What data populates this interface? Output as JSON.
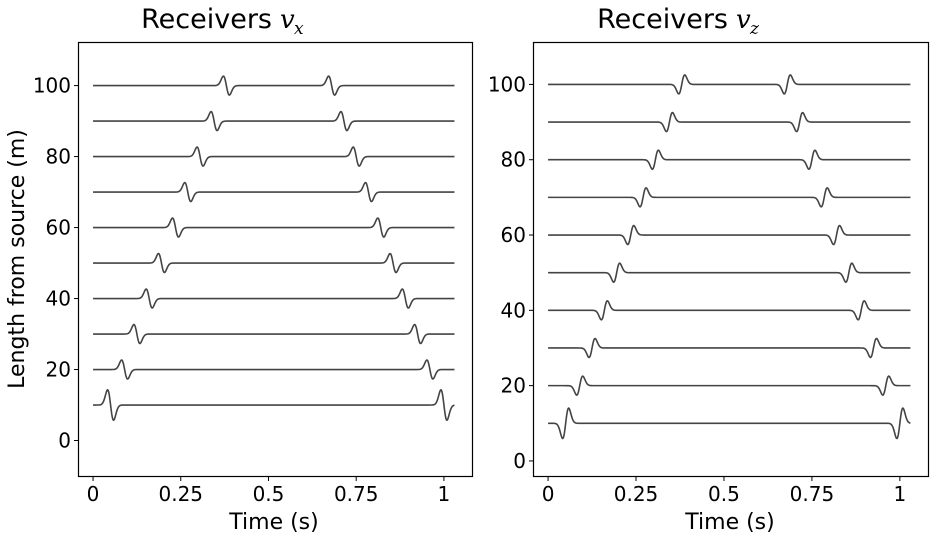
{
  "chart_data": [
    {
      "type": "line",
      "title": "Receivers",
      "title_symbol": "v",
      "title_subscript": "x",
      "xlabel": "Time (s)",
      "ylabel": "Length from source (m)",
      "xlim": [
        -0.04,
        1.08
      ],
      "ylim": [
        -10,
        112
      ],
      "xticks": [
        0,
        0.25,
        0.5,
        0.75,
        1
      ],
      "xtick_labels": [
        "0",
        "0.25",
        "0.5",
        "0.75",
        "1"
      ],
      "yticks": [
        0,
        20,
        40,
        60,
        80,
        100
      ],
      "ytick_labels": [
        "0",
        "20",
        "40",
        "60",
        "80",
        "100"
      ],
      "trace_color": "#444444",
      "trace_x_range": [
        0,
        1.03
      ],
      "series": [
        {
          "offset": 10,
          "arrivals": [
            0.05,
            1.0
          ],
          "polarity": "down"
        },
        {
          "offset": 20,
          "arrivals": [
            0.09,
            0.96
          ],
          "polarity": "down"
        },
        {
          "offset": 30,
          "arrivals": [
            0.125,
            0.925
          ],
          "polarity": "down"
        },
        {
          "offset": 40,
          "arrivals": [
            0.16,
            0.89
          ],
          "polarity": "down"
        },
        {
          "offset": 50,
          "arrivals": [
            0.195,
            0.855
          ],
          "polarity": "down"
        },
        {
          "offset": 60,
          "arrivals": [
            0.235,
            0.82
          ],
          "polarity": "down"
        },
        {
          "offset": 70,
          "arrivals": [
            0.27,
            0.785
          ],
          "polarity": "down"
        },
        {
          "offset": 80,
          "arrivals": [
            0.305,
            0.75
          ],
          "polarity": "down"
        },
        {
          "offset": 90,
          "arrivals": [
            0.345,
            0.715
          ],
          "polarity": "down"
        },
        {
          "offset": 100,
          "arrivals": [
            0.38,
            0.68
          ],
          "polarity": "down"
        }
      ]
    },
    {
      "type": "line",
      "title": "Receivers",
      "title_symbol": "v",
      "title_subscript": "z",
      "xlabel": "Time (s)",
      "ylabel": "",
      "xlim": [
        -0.04,
        1.08
      ],
      "ylim": [
        -4,
        111
      ],
      "xticks": [
        0,
        0.25,
        0.5,
        0.75,
        1
      ],
      "xtick_labels": [
        "0",
        "0.25",
        "0.5",
        "0.75",
        "1"
      ],
      "yticks": [
        0,
        20,
        40,
        60,
        80,
        100
      ],
      "ytick_labels": [
        "0",
        "20",
        "40",
        "60",
        "80",
        "100"
      ],
      "trace_color": "#444444",
      "trace_x_range": [
        0,
        1.03
      ],
      "series": [
        {
          "offset": 10,
          "arrivals": [
            0.05,
            1.0
          ],
          "polarity": "up"
        },
        {
          "offset": 20,
          "arrivals": [
            0.09,
            0.96
          ],
          "polarity": "up"
        },
        {
          "offset": 30,
          "arrivals": [
            0.125,
            0.925
          ],
          "polarity": "up"
        },
        {
          "offset": 40,
          "arrivals": [
            0.16,
            0.89
          ],
          "polarity": "up"
        },
        {
          "offset": 50,
          "arrivals": [
            0.195,
            0.855
          ],
          "polarity": "up"
        },
        {
          "offset": 60,
          "arrivals": [
            0.235,
            0.82
          ],
          "polarity": "up"
        },
        {
          "offset": 70,
          "arrivals": [
            0.27,
            0.785
          ],
          "polarity": "up"
        },
        {
          "offset": 80,
          "arrivals": [
            0.305,
            0.75
          ],
          "polarity": "up"
        },
        {
          "offset": 90,
          "arrivals": [
            0.345,
            0.715
          ],
          "polarity": "up"
        },
        {
          "offset": 100,
          "arrivals": [
            0.38,
            0.68
          ],
          "polarity": "up"
        }
      ]
    }
  ]
}
